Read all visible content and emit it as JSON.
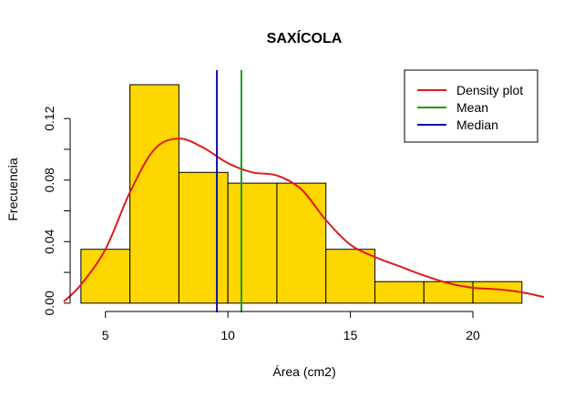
{
  "chart_data": {
    "type": "bar",
    "title": "SAXÍCOLA",
    "xlabel": "Área (cm2)",
    "ylabel": "Frecuencia",
    "xlim": [
      3.3,
      22.9
    ],
    "ylim": [
      -0.006,
      0.142
    ],
    "x_ticks": [
      5,
      10,
      15,
      20
    ],
    "x_tick_labels": [
      "5",
      "10",
      "15",
      "20"
    ],
    "y_ticks": [
      0.0,
      0.04,
      0.08,
      0.12
    ],
    "y_tick_labels": [
      "0.00",
      "0.04",
      "0.08",
      "0.12"
    ],
    "bins": [
      {
        "from": 4,
        "to": 6,
        "density": 0.035
      },
      {
        "from": 6,
        "to": 8,
        "density": 0.142
      },
      {
        "from": 8,
        "to": 10,
        "density": 0.085
      },
      {
        "from": 10,
        "to": 12,
        "density": 0.078
      },
      {
        "from": 12,
        "to": 14,
        "density": 0.078
      },
      {
        "from": 14,
        "to": 16,
        "density": 0.035
      },
      {
        "from": 16,
        "to": 18,
        "density": 0.014
      },
      {
        "from": 18,
        "to": 20,
        "density": 0.014
      },
      {
        "from": 20,
        "to": 22,
        "density": 0.014
      }
    ],
    "density_curve": {
      "x": [
        3.3,
        4.0,
        5.0,
        6.0,
        7.0,
        8.0,
        9.0,
        10.0,
        11.0,
        12.0,
        13.0,
        14.0,
        15.0,
        16.0,
        17.0,
        18.0,
        19.0,
        20.0,
        21.0,
        22.0,
        22.9
      ],
      "y": [
        0.001,
        0.012,
        0.035,
        0.072,
        0.1,
        0.107,
        0.101,
        0.091,
        0.085,
        0.083,
        0.074,
        0.054,
        0.038,
        0.03,
        0.024,
        0.018,
        0.013,
        0.01,
        0.009,
        0.007,
        0.004
      ]
    },
    "mean": 10.55,
    "median": 9.55,
    "legend": {
      "position": "top-right",
      "entries": [
        {
          "label": "Density plot",
          "color": "#dd1c1c"
        },
        {
          "label": "Mean",
          "color": "#1e9c1e"
        },
        {
          "label": "Median",
          "color": "#1010b0"
        }
      ]
    },
    "colors": {
      "bar_fill": "#ffd700",
      "bar_stroke": "#000000",
      "density": "#dd1c1c",
      "mean": "#1e9c1e",
      "median": "#1010b0"
    },
    "grid": false
  }
}
